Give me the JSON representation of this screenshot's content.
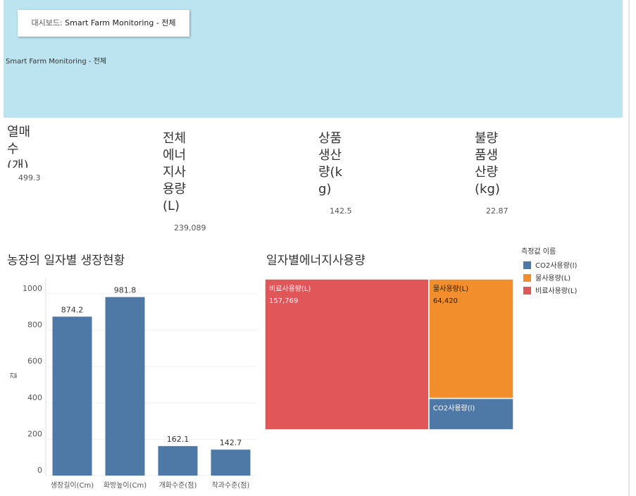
{
  "header": {
    "button": {
      "prefix": "대시보드:",
      "name": "Smart Farm Monitoring - 전체"
    },
    "subtitle": "Smart Farm Monitoring - 전체"
  },
  "kpis": [
    {
      "title": "열매수(개)",
      "value": "499.3"
    },
    {
      "title": "전체에너지사용량(L)",
      "value": "239,089"
    },
    {
      "title": "상품생산량(kg)",
      "value": "142.5"
    },
    {
      "title": "불량품생산량(kg)",
      "value": "22.87"
    }
  ],
  "chart_data": [
    {
      "type": "bar",
      "title": "농장의 일자별 생장현황",
      "y_label": "값",
      "categories": [
        "생장길이(Cm)",
        "화방높이(Cm)",
        "개화수준(점)",
        "착과수준(점)"
      ],
      "values": [
        874.2,
        981.8,
        162.1,
        142.7
      ],
      "color": "#4e79a7",
      "ylim": [
        0,
        1085
      ],
      "yticks": [
        0,
        200,
        400,
        600,
        800,
        1000
      ],
      "grid": true
    },
    {
      "type": "treemap",
      "title": "일자별에너지사용량",
      "legend_title": "측정값 이름",
      "legend_order": [
        2,
        1,
        0
      ],
      "categories": [
        "비료사용량(L)",
        "물사용량(L)",
        "CO2사용량(l)"
      ],
      "values": [
        157769,
        64420,
        16900
      ],
      "value_labels": [
        "157,769",
        "64,420",
        null
      ],
      "colors": [
        "#e15759",
        "#f28e2b",
        "#4e79a7"
      ]
    }
  ]
}
